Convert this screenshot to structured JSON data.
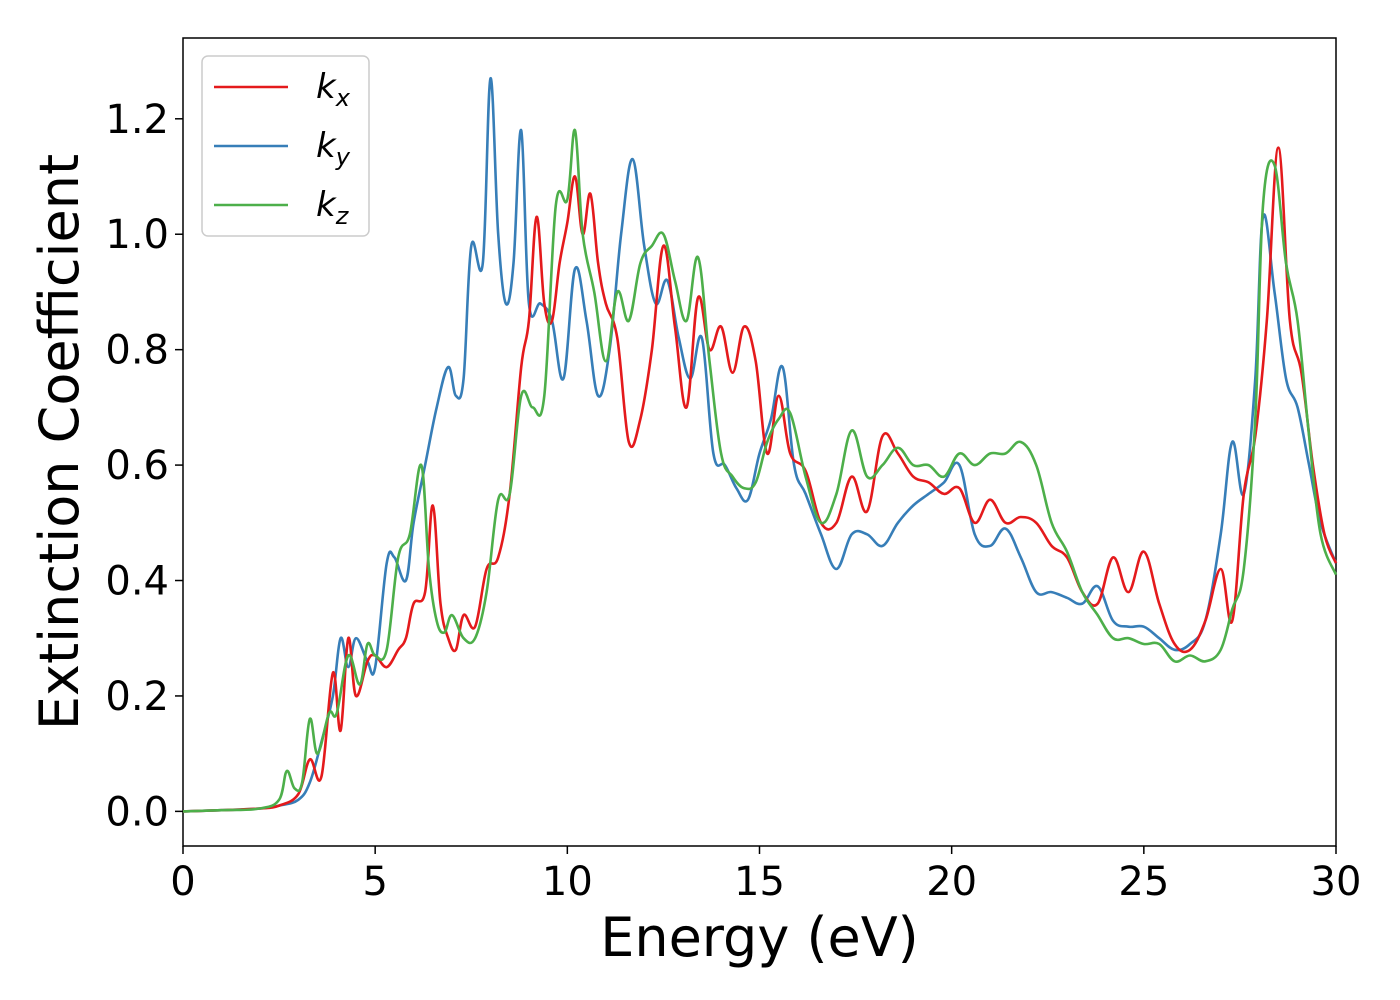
{
  "chart_data": {
    "type": "line",
    "xlabel": "Energy (eV)",
    "ylabel": "Extinction Coefficient",
    "xlim": [
      0,
      30
    ],
    "ylim": [
      -0.06,
      1.34
    ],
    "xticks": [
      0,
      5,
      10,
      15,
      20,
      25,
      30
    ],
    "yticks": [
      0.0,
      0.2,
      0.4,
      0.6,
      0.8,
      1.0,
      1.2
    ],
    "xtick_labels": [
      "0",
      "5",
      "10",
      "15",
      "20",
      "25",
      "30"
    ],
    "ytick_labels": [
      "0.0",
      "0.2",
      "0.4",
      "0.6",
      "0.8",
      "1.0",
      "1.2"
    ],
    "grid": false,
    "legend_position": "top-left",
    "series": [
      {
        "name": "k_x",
        "label_main": "k",
        "label_sub": "x",
        "color": "#e41a1c",
        "x": [
          0,
          1,
          2,
          2.5,
          3,
          3.3,
          3.6,
          3.9,
          4.1,
          4.3,
          4.5,
          4.8,
          5.0,
          5.3,
          5.6,
          5.8,
          6.0,
          6.3,
          6.5,
          6.7,
          6.9,
          7.1,
          7.3,
          7.6,
          7.9,
          8.2,
          8.5,
          8.8,
          9.0,
          9.2,
          9.4,
          9.6,
          9.8,
          10.0,
          10.2,
          10.4,
          10.6,
          10.8,
          11.0,
          11.3,
          11.6,
          11.9,
          12.2,
          12.5,
          12.8,
          13.1,
          13.4,
          13.7,
          14.0,
          14.3,
          14.6,
          14.9,
          15.2,
          15.5,
          15.8,
          16.2,
          16.6,
          17.0,
          17.4,
          17.8,
          18.2,
          18.6,
          19.0,
          19.4,
          19.8,
          20.2,
          20.6,
          21.0,
          21.4,
          21.8,
          22.2,
          22.6,
          23.0,
          23.4,
          23.8,
          24.2,
          24.6,
          25.0,
          25.4,
          25.8,
          26.2,
          26.6,
          27.0,
          27.3,
          27.6,
          27.9,
          28.2,
          28.5,
          28.8,
          29.1,
          29.4,
          29.7,
          30.0
        ],
        "values": [
          0.0,
          0.002,
          0.005,
          0.01,
          0.03,
          0.09,
          0.06,
          0.24,
          0.14,
          0.3,
          0.2,
          0.26,
          0.27,
          0.25,
          0.28,
          0.3,
          0.36,
          0.38,
          0.53,
          0.36,
          0.3,
          0.28,
          0.34,
          0.32,
          0.42,
          0.44,
          0.55,
          0.77,
          0.85,
          1.03,
          0.88,
          0.85,
          0.95,
          1.02,
          1.1,
          1.0,
          1.07,
          0.95,
          0.88,
          0.82,
          0.64,
          0.68,
          0.8,
          0.98,
          0.84,
          0.7,
          0.89,
          0.8,
          0.84,
          0.76,
          0.84,
          0.78,
          0.62,
          0.72,
          0.62,
          0.59,
          0.5,
          0.5,
          0.58,
          0.52,
          0.65,
          0.62,
          0.58,
          0.57,
          0.55,
          0.56,
          0.5,
          0.54,
          0.5,
          0.51,
          0.5,
          0.46,
          0.44,
          0.38,
          0.36,
          0.44,
          0.38,
          0.45,
          0.36,
          0.29,
          0.28,
          0.33,
          0.42,
          0.33,
          0.55,
          0.65,
          0.85,
          1.15,
          0.85,
          0.76,
          0.6,
          0.48,
          0.43
        ]
      },
      {
        "name": "k_y",
        "label_main": "k",
        "label_sub": "y",
        "color": "#377eb8",
        "x": [
          0,
          1,
          2,
          2.5,
          3,
          3.3,
          3.6,
          3.9,
          4.1,
          4.3,
          4.5,
          4.8,
          5.0,
          5.3,
          5.5,
          5.8,
          6.0,
          6.3,
          6.6,
          6.9,
          7.1,
          7.3,
          7.5,
          7.8,
          8.0,
          8.2,
          8.4,
          8.6,
          8.8,
          9.0,
          9.3,
          9.6,
          9.9,
          10.2,
          10.5,
          10.8,
          11.1,
          11.4,
          11.7,
          12.0,
          12.3,
          12.6,
          12.9,
          13.2,
          13.5,
          13.8,
          14.1,
          14.4,
          14.7,
          15.0,
          15.3,
          15.6,
          15.9,
          16.2,
          16.6,
          17.0,
          17.4,
          17.8,
          18.2,
          18.6,
          19.0,
          19.4,
          19.8,
          20.2,
          20.6,
          21.0,
          21.4,
          21.8,
          22.2,
          22.6,
          23.0,
          23.4,
          23.8,
          24.2,
          24.6,
          25.0,
          25.4,
          25.8,
          26.2,
          26.6,
          27.0,
          27.3,
          27.6,
          27.9,
          28.1,
          28.4,
          28.7,
          29.0,
          29.3,
          29.6,
          30.0
        ],
        "values": [
          0.0,
          0.002,
          0.005,
          0.01,
          0.02,
          0.05,
          0.12,
          0.2,
          0.3,
          0.25,
          0.3,
          0.26,
          0.25,
          0.43,
          0.44,
          0.4,
          0.5,
          0.6,
          0.7,
          0.77,
          0.72,
          0.75,
          0.98,
          0.95,
          1.27,
          1.0,
          0.88,
          0.95,
          1.18,
          0.88,
          0.88,
          0.85,
          0.75,
          0.94,
          0.85,
          0.72,
          0.8,
          1.0,
          1.13,
          0.98,
          0.88,
          0.92,
          0.82,
          0.75,
          0.82,
          0.62,
          0.6,
          0.56,
          0.54,
          0.62,
          0.68,
          0.77,
          0.6,
          0.55,
          0.48,
          0.42,
          0.48,
          0.48,
          0.46,
          0.5,
          0.53,
          0.55,
          0.57,
          0.6,
          0.48,
          0.46,
          0.49,
          0.44,
          0.38,
          0.38,
          0.37,
          0.36,
          0.39,
          0.33,
          0.32,
          0.32,
          0.3,
          0.28,
          0.29,
          0.33,
          0.48,
          0.64,
          0.55,
          0.75,
          1.03,
          0.9,
          0.75,
          0.7,
          0.6,
          0.5,
          0.43
        ]
      },
      {
        "name": "k_z",
        "label_main": "k",
        "label_sub": "z",
        "color": "#4daf4a",
        "x": [
          0,
          1,
          2,
          2.5,
          2.7,
          2.9,
          3.1,
          3.3,
          3.5,
          3.8,
          4.0,
          4.3,
          4.6,
          4.8,
          5.0,
          5.3,
          5.6,
          5.9,
          6.2,
          6.4,
          6.6,
          6.8,
          7.0,
          7.3,
          7.6,
          7.9,
          8.2,
          8.5,
          8.8,
          9.1,
          9.4,
          9.7,
          10.0,
          10.2,
          10.4,
          10.7,
          11.0,
          11.3,
          11.6,
          11.9,
          12.2,
          12.5,
          12.8,
          13.1,
          13.4,
          13.7,
          14.0,
          14.3,
          14.6,
          14.9,
          15.2,
          15.5,
          15.8,
          16.2,
          16.6,
          17.0,
          17.4,
          17.8,
          18.2,
          18.6,
          19.0,
          19.4,
          19.8,
          20.2,
          20.6,
          21.0,
          21.4,
          21.8,
          22.2,
          22.6,
          23.0,
          23.4,
          23.8,
          24.2,
          24.6,
          25.0,
          25.4,
          25.8,
          26.2,
          26.6,
          27.0,
          27.3,
          27.6,
          27.9,
          28.1,
          28.4,
          28.7,
          29.0,
          29.3,
          29.6,
          30.0
        ],
        "values": [
          0.0,
          0.002,
          0.005,
          0.02,
          0.07,
          0.04,
          0.05,
          0.16,
          0.1,
          0.17,
          0.17,
          0.27,
          0.22,
          0.29,
          0.27,
          0.28,
          0.44,
          0.48,
          0.6,
          0.42,
          0.33,
          0.31,
          0.34,
          0.3,
          0.3,
          0.38,
          0.54,
          0.55,
          0.72,
          0.7,
          0.72,
          1.05,
          1.06,
          1.18,
          1.0,
          0.9,
          0.78,
          0.9,
          0.85,
          0.95,
          0.98,
          1.0,
          0.92,
          0.85,
          0.96,
          0.78,
          0.62,
          0.58,
          0.56,
          0.57,
          0.64,
          0.68,
          0.69,
          0.58,
          0.5,
          0.55,
          0.66,
          0.58,
          0.6,
          0.63,
          0.6,
          0.6,
          0.58,
          0.62,
          0.6,
          0.62,
          0.62,
          0.64,
          0.6,
          0.5,
          0.45,
          0.38,
          0.34,
          0.3,
          0.3,
          0.29,
          0.29,
          0.26,
          0.27,
          0.26,
          0.28,
          0.35,
          0.42,
          0.68,
          1.05,
          1.12,
          0.95,
          0.85,
          0.65,
          0.48,
          0.41
        ]
      }
    ]
  }
}
